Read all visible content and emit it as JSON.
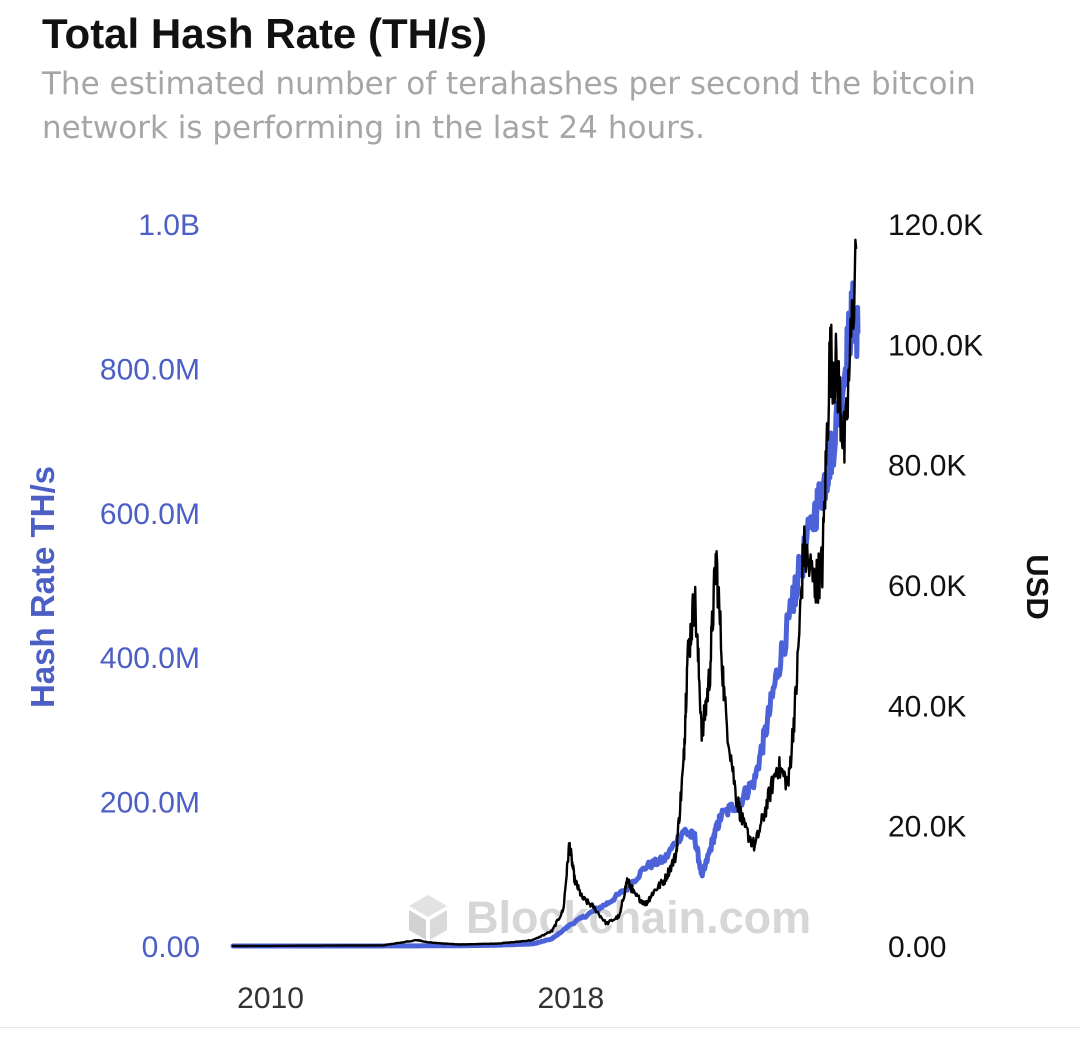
{
  "header": {
    "title": "Total Hash Rate (TH/s)",
    "subtitle": "The estimated number of terahashes per second the bitcoin network is performing in the last 24 hours."
  },
  "watermark": {
    "text": "Blockchain.com",
    "icon": "blockchain-cube-icon"
  },
  "colors": {
    "hash": "#4c62d8",
    "price": "#000000",
    "left_axis": "#4c5fc4",
    "right_axis": "#111111",
    "watermark": "#d6d6d6"
  },
  "chart_data": {
    "type": "line",
    "title": "Total Hash Rate (TH/s)",
    "x_ticks": [
      "2010",
      "2018"
    ],
    "x_tick_years": [
      2010,
      2018
    ],
    "left_axis": {
      "label": "Hash Rate TH/s",
      "range": [
        0,
        1000000000
      ],
      "tick_values": [
        0,
        200000000,
        400000000,
        600000000,
        800000000,
        1000000000
      ],
      "tick_labels": [
        "0.00",
        "200.0M",
        "400.0M",
        "600.0M",
        "800.0M",
        "1.0B"
      ]
    },
    "right_axis": {
      "label": "USD",
      "range": [
        0,
        120000
      ],
      "tick_values": [
        0,
        20000,
        40000,
        60000,
        80000,
        100000,
        120000
      ],
      "tick_labels": [
        "0.00",
        "20.0K",
        "40.0K",
        "60.0K",
        "80.0K",
        "100.0K",
        "120.0K"
      ]
    },
    "grid": false,
    "series": [
      {
        "axis": "left",
        "x": [
          2009.0,
          2012.0,
          2013.5,
          2014.5,
          2015.0,
          2016.0,
          2017.0,
          2017.5,
          2018.0,
          2018.5,
          2019.0,
          2019.5,
          2020.0,
          2020.5,
          2021.0,
          2021.3,
          2021.5,
          2021.8,
          2022.0,
          2022.5,
          2022.9,
          2023.2,
          2023.5,
          2023.9,
          2024.0,
          2024.5,
          2024.8,
          2025.0,
          2025.3,
          2025.5,
          2025.65
        ],
        "values": [
          0,
          0,
          100000,
          300000,
          400000,
          1000000,
          3000000,
          10000000,
          30000000,
          45000000,
          60000000,
          80000000,
          110000000,
          120000000,
          160000000,
          150000000,
          95000000,
          150000000,
          180000000,
          200000000,
          230000000,
          300000000,
          380000000,
          470000000,
          500000000,
          600000000,
          650000000,
          700000000,
          800000000,
          880000000,
          850000000
        ]
      },
      {
        "axis": "right",
        "x": [
          2009.0,
          2013.0,
          2013.9,
          2014.2,
          2015.0,
          2016.0,
          2016.5,
          2017.0,
          2017.5,
          2017.8,
          2017.96,
          2018.1,
          2018.3,
          2018.6,
          2018.95,
          2019.3,
          2019.5,
          2019.7,
          2020.0,
          2020.2,
          2020.5,
          2020.8,
          2021.0,
          2021.1,
          2021.3,
          2021.5,
          2021.7,
          2021.87,
          2022.1,
          2022.4,
          2022.6,
          2022.9,
          2023.2,
          2023.5,
          2023.8,
          2024.0,
          2024.2,
          2024.5,
          2024.7,
          2024.9,
          2025.1,
          2025.3,
          2025.6
        ],
        "values": [
          0,
          100,
          1000,
          600,
          250,
          400,
          650,
          1000,
          2500,
          6000,
          17000,
          11000,
          8000,
          6500,
          3700,
          5000,
          11000,
          8500,
          7000,
          9000,
          11000,
          15000,
          30000,
          47000,
          58000,
          35000,
          45000,
          65000,
          40000,
          25000,
          20000,
          16500,
          23000,
          30000,
          27000,
          42000,
          66000,
          60000,
          63000,
          98000,
          95000,
          82000,
          116000
        ]
      }
    ]
  }
}
